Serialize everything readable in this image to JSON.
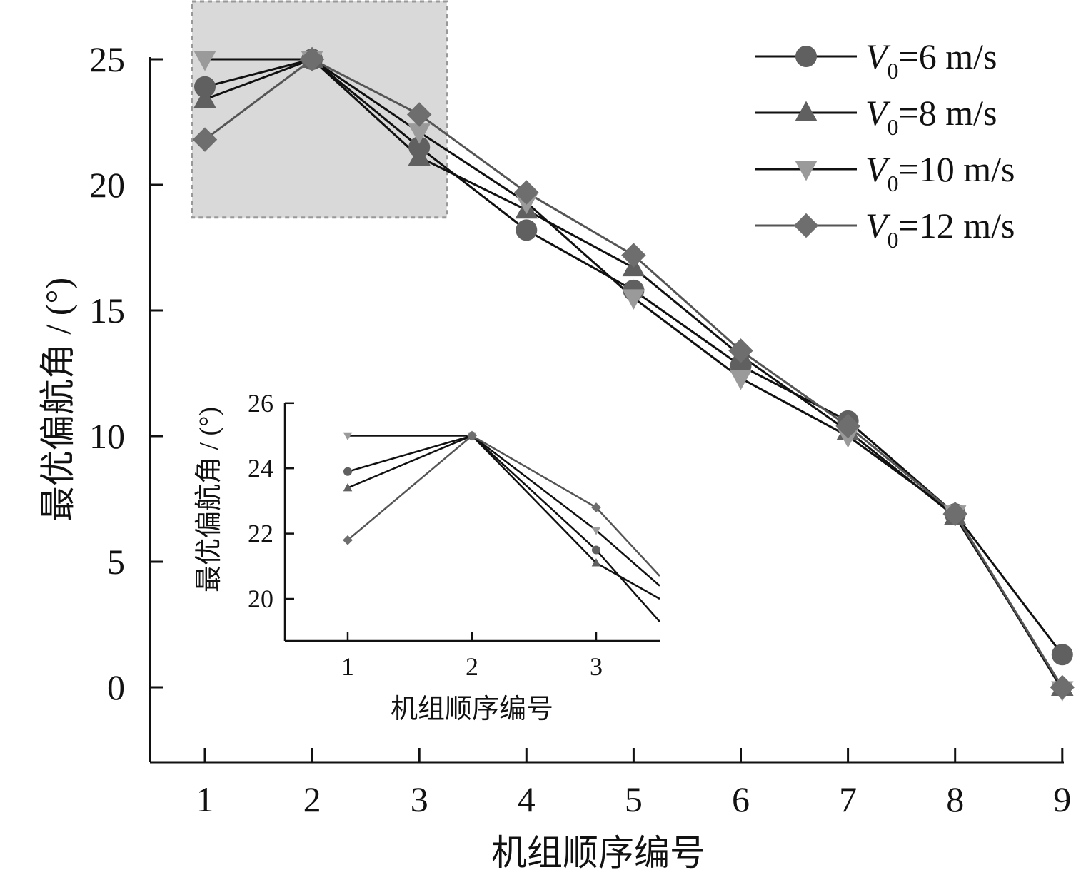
{
  "chart_data": [
    {
      "type": "line",
      "role": "main",
      "xlabel": "机组顺序编号",
      "ylabel": "最优偏航角 / (°)",
      "x": [
        1,
        2,
        3,
        4,
        5,
        6,
        7,
        8,
        9
      ],
      "xticks": [
        "1",
        "2",
        "3",
        "4",
        "5",
        "6",
        "7",
        "8",
        "9"
      ],
      "yticks": [
        "0",
        "5",
        "10",
        "15",
        "20",
        "25"
      ],
      "xlim": [
        0.5,
        9
      ],
      "ylim": [
        -3,
        25.6
      ],
      "highlight_region": {
        "x": [
          0.9,
          3.25
        ],
        "y": [
          18.7,
          27
        ]
      },
      "grid": false,
      "legend_position": "top-right",
      "series": [
        {
          "name": "=6 m/s",
          "legend_prefix": "V",
          "legend_sub": "0",
          "marker": "circle",
          "color": "#606060",
          "line_color": "#111111",
          "values": [
            23.9,
            25.0,
            21.5,
            18.2,
            15.8,
            12.8,
            10.6,
            6.9,
            1.3
          ]
        },
        {
          "name": "=8 m/s",
          "legend_prefix": "V",
          "legend_sub": "0",
          "marker": "triangle-up",
          "color": "#606060",
          "line_color": "#111111",
          "values": [
            23.4,
            25.0,
            21.1,
            19.0,
            16.7,
            13.2,
            10.2,
            6.8,
            0.0
          ]
        },
        {
          "name": "=10 m/s",
          "legend_prefix": "V",
          "legend_sub": "0",
          "marker": "triangle-down",
          "color": "#9a9a9a",
          "line_color": "#111111",
          "values": [
            25.0,
            25.0,
            22.1,
            19.3,
            15.5,
            12.3,
            10.0,
            6.9,
            -0.1
          ]
        },
        {
          "name": "=12 m/s",
          "legend_prefix": "V",
          "legend_sub": "0",
          "marker": "diamond",
          "color": "#6e6e6e",
          "line_color": "#555555",
          "values": [
            21.8,
            25.0,
            22.8,
            19.7,
            17.2,
            13.4,
            10.4,
            6.9,
            0.0
          ]
        }
      ]
    },
    {
      "type": "line",
      "role": "inset",
      "xlabel": "机组顺序编号",
      "ylabel": "最优偏航角 / (°)",
      "x": [
        1,
        2,
        3
      ],
      "xticks": [
        "1",
        "2",
        "3"
      ],
      "yticks": [
        "20",
        "22",
        "24",
        "26"
      ],
      "xlim": [
        0.5,
        3.5
      ],
      "ylim": [
        18.7,
        26
      ],
      "series": [
        {
          "name": "=6 m/s",
          "marker": "circle",
          "color": "#606060",
          "line_color": "#111111",
          "values": [
            23.9,
            25.0,
            21.5
          ],
          "end_value": 19.3
        },
        {
          "name": "=8 m/s",
          "marker": "triangle-up",
          "color": "#606060",
          "line_color": "#111111",
          "values": [
            23.4,
            25.0,
            21.1
          ],
          "end_value": 20.0
        },
        {
          "name": "=10 m/s",
          "marker": "triangle-down",
          "color": "#9a9a9a",
          "line_color": "#111111",
          "values": [
            25.0,
            25.0,
            22.1
          ],
          "end_value": 20.4
        },
        {
          "name": "=12 m/s",
          "marker": "diamond",
          "color": "#6e6e6e",
          "line_color": "#555555",
          "values": [
            21.8,
            25.0,
            22.8
          ],
          "end_value": 20.7
        }
      ]
    }
  ]
}
